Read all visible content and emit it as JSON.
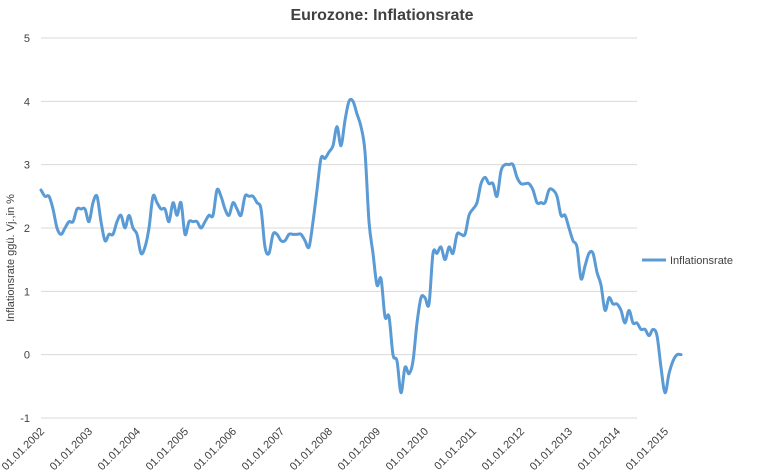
{
  "chart_data": {
    "type": "line",
    "title": "Eurozone: Inflationsrate",
    "xlabel": "",
    "ylabel": "Inflationsrate ggü. Vj.,in %",
    "ylim": [
      -1,
      5
    ],
    "yticks": [
      -1,
      0,
      1,
      2,
      3,
      4,
      5
    ],
    "grid": true,
    "legend_position": "right",
    "x_tick_labels": [
      "01.01.2002",
      "01.01.2003",
      "01.01.2004",
      "01.01.2005",
      "01.01.2006",
      "01.01.2007",
      "01.01.2008",
      "01.01.2009",
      "01.01.2010",
      "01.01.2011",
      "01.01.2012",
      "01.01.2013",
      "01.01.2014",
      "01.01.2015"
    ],
    "x_start": "2002-01",
    "series": [
      {
        "name": "Inflationsrate",
        "color": "#5b9bd5",
        "values": [
          2.6,
          2.5,
          2.5,
          2.3,
          2.0,
          1.9,
          2.0,
          2.1,
          2.1,
          2.3,
          2.3,
          2.3,
          2.1,
          2.4,
          2.5,
          2.1,
          1.8,
          1.9,
          1.9,
          2.1,
          2.2,
          2.0,
          2.2,
          2.0,
          1.9,
          1.6,
          1.7,
          2.0,
          2.5,
          2.4,
          2.3,
          2.3,
          2.1,
          2.4,
          2.2,
          2.4,
          1.9,
          2.1,
          2.1,
          2.1,
          2.0,
          2.1,
          2.2,
          2.2,
          2.6,
          2.5,
          2.3,
          2.2,
          2.4,
          2.3,
          2.2,
          2.5,
          2.5,
          2.5,
          2.4,
          2.3,
          1.7,
          1.6,
          1.9,
          1.9,
          1.8,
          1.8,
          1.9,
          1.9,
          1.9,
          1.9,
          1.8,
          1.7,
          2.1,
          2.6,
          3.1,
          3.1,
          3.2,
          3.3,
          3.6,
          3.3,
          3.7,
          4.0,
          4.0,
          3.8,
          3.6,
          3.2,
          2.1,
          1.6,
          1.1,
          1.2,
          0.6,
          0.6,
          0.0,
          -0.1,
          -0.6,
          -0.2,
          -0.3,
          -0.1,
          0.5,
          0.9,
          0.9,
          0.8,
          1.6,
          1.6,
          1.7,
          1.5,
          1.7,
          1.6,
          1.9,
          1.9,
          1.9,
          2.2,
          2.3,
          2.4,
          2.7,
          2.8,
          2.7,
          2.7,
          2.5,
          2.9,
          3.0,
          3.0,
          3.0,
          2.8,
          2.7,
          2.7,
          2.7,
          2.6,
          2.4,
          2.4,
          2.4,
          2.6,
          2.6,
          2.5,
          2.2,
          2.2,
          2.0,
          1.8,
          1.7,
          1.2,
          1.4,
          1.6,
          1.6,
          1.3,
          1.1,
          0.7,
          0.9,
          0.8,
          0.8,
          0.7,
          0.5,
          0.7,
          0.5,
          0.5,
          0.4,
          0.4,
          0.3,
          0.4,
          0.3,
          -0.2,
          -0.6,
          -0.3,
          -0.1,
          0.0,
          0.0
        ]
      }
    ]
  }
}
